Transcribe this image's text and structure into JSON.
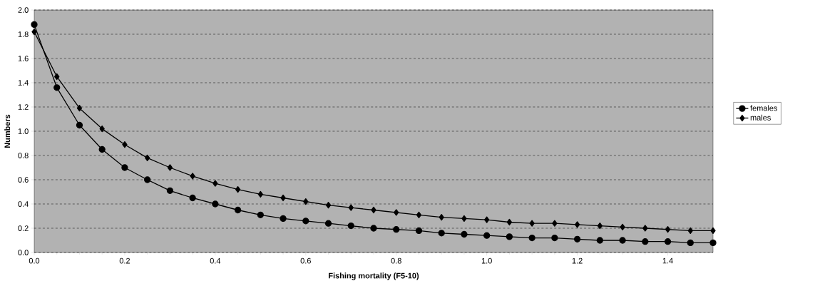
{
  "chart_data": {
    "type": "line",
    "xlabel": "Fishing mortality (F5-10)",
    "ylabel": "Numbers",
    "x": [
      0.0,
      0.05,
      0.1,
      0.15,
      0.2,
      0.25,
      0.3,
      0.35,
      0.4,
      0.45,
      0.5,
      0.55,
      0.6,
      0.65,
      0.7,
      0.75,
      0.8,
      0.85,
      0.9,
      0.95,
      1.0,
      1.05,
      1.1,
      1.15,
      1.2,
      1.25,
      1.3,
      1.35,
      1.4,
      1.45,
      1.5
    ],
    "series": [
      {
        "name": "females",
        "color": "#000000",
        "marker": "circle",
        "values": [
          1.88,
          1.36,
          1.05,
          0.85,
          0.7,
          0.6,
          0.51,
          0.45,
          0.4,
          0.35,
          0.31,
          0.28,
          0.26,
          0.24,
          0.22,
          0.2,
          0.19,
          0.18,
          0.16,
          0.15,
          0.14,
          0.13,
          0.12,
          0.12,
          0.11,
          0.1,
          0.1,
          0.09,
          0.09,
          0.08,
          0.08
        ]
      },
      {
        "name": "males",
        "color": "#000000",
        "marker": "diamond",
        "values": [
          1.82,
          1.45,
          1.19,
          1.02,
          0.89,
          0.78,
          0.7,
          0.63,
          0.57,
          0.52,
          0.48,
          0.45,
          0.42,
          0.39,
          0.37,
          0.35,
          0.33,
          0.31,
          0.29,
          0.28,
          0.27,
          0.25,
          0.24,
          0.24,
          0.23,
          0.22,
          0.21,
          0.2,
          0.19,
          0.18,
          0.18
        ]
      }
    ],
    "xlim": [
      0,
      1.5
    ],
    "ylim": [
      0,
      2.0
    ],
    "xticks": [
      {
        "value": 0,
        "label": "0.0"
      },
      0.2,
      0.4,
      0.6,
      0.8,
      {
        "value": 1,
        "label": "1.0"
      },
      1.2,
      1.4
    ],
    "yticks": [
      {
        "value": 0,
        "label": "0.0"
      },
      0.2,
      0.4,
      0.6,
      0.8,
      {
        "value": 1,
        "label": "1.0"
      },
      1.2,
      1.4,
      1.6,
      1.8,
      {
        "value": 2,
        "label": "2.0"
      }
    ],
    "grid": "y",
    "legend": "right",
    "line_style": "solid"
  }
}
